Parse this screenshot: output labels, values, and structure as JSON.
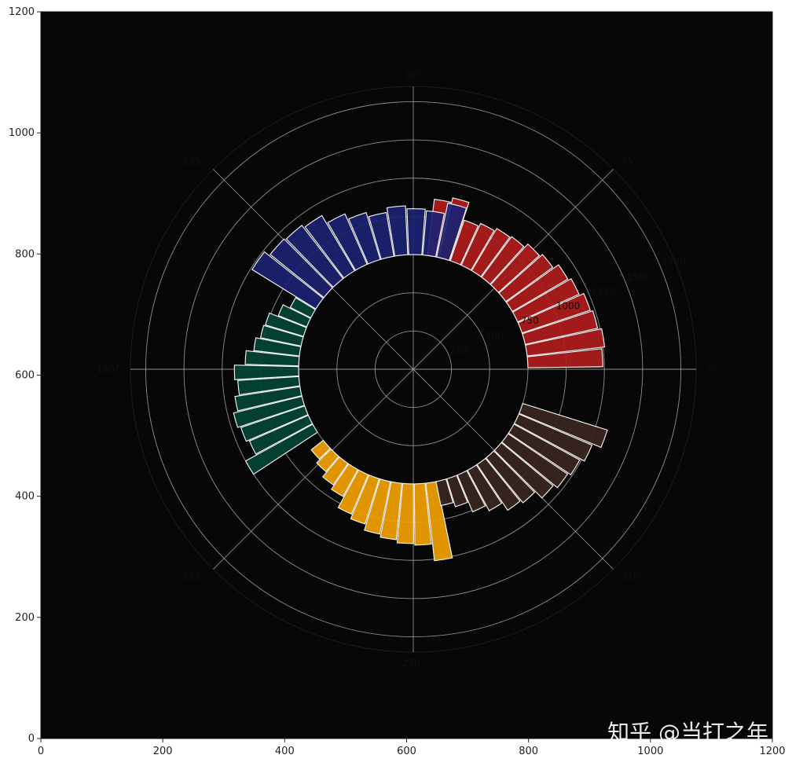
{
  "chart_data": {
    "type": "bar",
    "subtype": "circular-bar",
    "polar": true,
    "background_color": "#070707",
    "grid": true,
    "xlim": [
      0,
      1200
    ],
    "ylim": [
      0,
      1200
    ],
    "x_ticks": [
      "0",
      "200",
      "400",
      "600",
      "800",
      "1000",
      "1200"
    ],
    "y_ticks": [
      "0",
      "200",
      "400",
      "600",
      "800",
      "1000",
      "1200"
    ],
    "angle_ticks": [
      {
        "deg": 0,
        "label": "0°"
      },
      {
        "deg": 45,
        "label": "45°"
      },
      {
        "deg": 90,
        "label": "90°"
      },
      {
        "deg": 135,
        "label": "135°"
      },
      {
        "deg": 180,
        "label": "180°"
      },
      {
        "deg": 225,
        "label": "225°"
      },
      {
        "deg": 270,
        "label": "270°"
      },
      {
        "deg": 315,
        "label": "315°"
      }
    ],
    "radial_ticks": [
      {
        "value": 250,
        "label": "250"
      },
      {
        "value": 500,
        "label": "500"
      },
      {
        "value": 750,
        "label": "750"
      },
      {
        "value": 1000,
        "label": "1000"
      },
      {
        "value": 1250,
        "label": "1250"
      },
      {
        "value": 1500,
        "label": "1500"
      },
      {
        "value": 1750,
        "label": "1750"
      }
    ],
    "radial_max": 1850,
    "inner_radius": 750,
    "series": [
      {
        "color": "#b01c1c",
        "start_deg": 3.5,
        "step_deg": 5.9,
        "values": [
          490,
          510,
          485,
          470,
          440,
          420,
          380,
          360,
          330,
          320,
          300,
          280,
          400,
          370
        ]
      },
      {
        "color": "#1c2272",
        "start_deg": 75,
        "step_deg": 7,
        "values": [
          360,
          290,
          300,
          320,
          290,
          320,
          360,
          420,
          440,
          450,
          490
        ]
      },
      {
        "color": "#044536",
        "start_deg": 151,
        "step_deg": 5,
        "values": [
          150,
          200,
          260,
          270,
          300,
          350,
          420,
          400,
          430,
          460,
          440,
          420,
          500
        ]
      },
      {
        "color": "#f2a100",
        "start_deg": 221,
        "step_deg": 5.8,
        "values": [
          100,
          130,
          170,
          200,
          280,
          310,
          350,
          370,
          390,
          400,
          510
        ]
      },
      {
        "color": "#3b2621",
        "start_deg": 284,
        "step_deg": 5.6,
        "values": [
          160,
          190,
          260,
          300,
          360,
          380,
          440,
          470,
          490,
          520,
          580
        ]
      }
    ]
  },
  "watermark": {
    "text": "知乎 @当打之年"
  }
}
